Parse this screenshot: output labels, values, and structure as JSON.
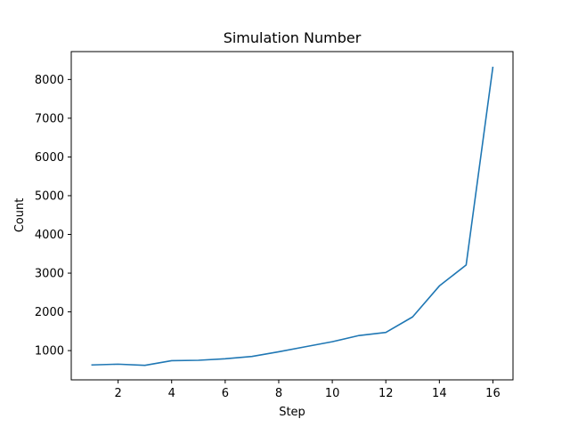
{
  "chart_data": {
    "type": "line",
    "title": "Simulation Number",
    "xlabel": "Step",
    "ylabel": "Count",
    "x": [
      1,
      2,
      3,
      4,
      5,
      6,
      7,
      8,
      9,
      10,
      11,
      12,
      13,
      14,
      15,
      16
    ],
    "series": [
      {
        "values": [
          630,
          650,
          620,
          740,
          750,
          790,
          850,
          970,
          1100,
          1230,
          1390,
          1470,
          1870,
          2670,
          3210,
          8330
        ],
        "color": "#1f77b4"
      }
    ],
    "xlim": [
      0.25,
      16.75
    ],
    "ylim": [
      245,
      8720
    ],
    "xticks": [
      2,
      4,
      6,
      8,
      10,
      12,
      14,
      16
    ],
    "yticks": [
      1000,
      2000,
      3000,
      4000,
      5000,
      6000,
      7000,
      8000
    ],
    "grid": false,
    "legend": "none"
  }
}
